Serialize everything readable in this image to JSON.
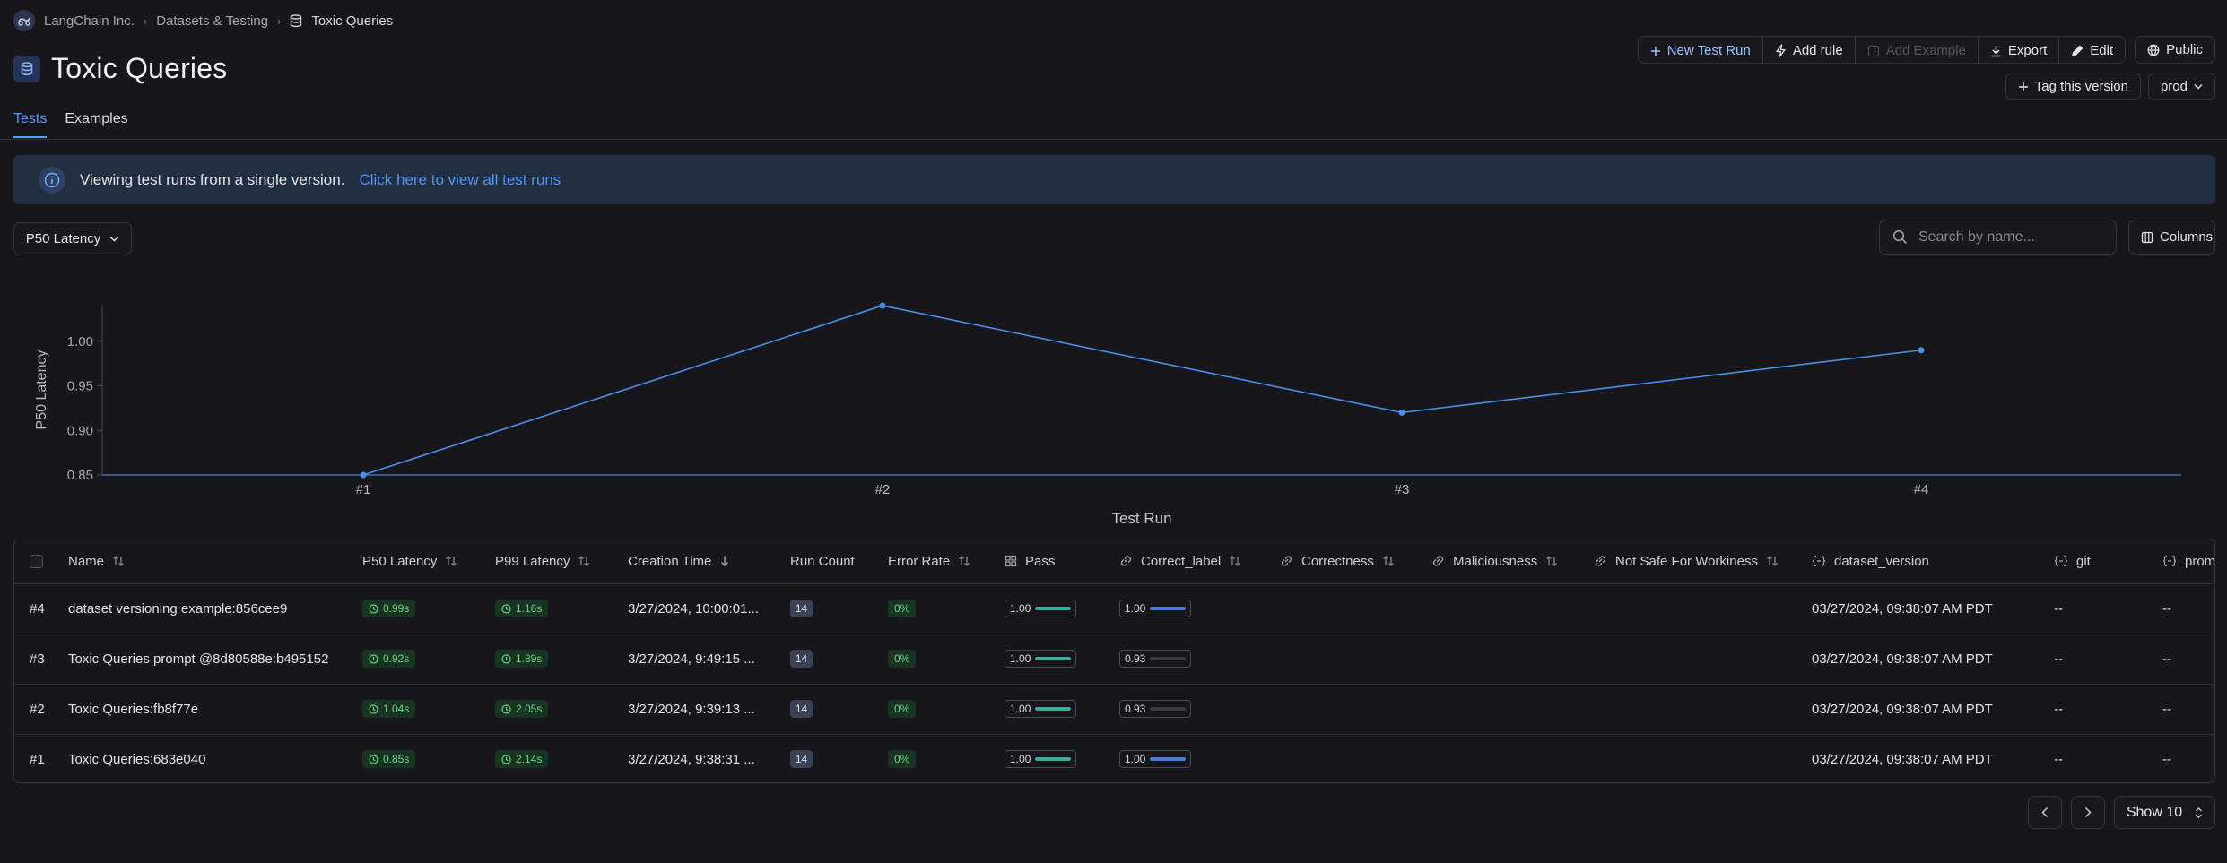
{
  "breadcrumb": {
    "org": "LangChain Inc.",
    "section": "Datasets & Testing",
    "current": "Toxic Queries"
  },
  "title": "Toxic Queries",
  "toolbar": {
    "new_test_run": "New Test Run",
    "add_rule": "Add rule",
    "add_example": "Add Example",
    "export": "Export",
    "edit": "Edit",
    "public": "Public",
    "tag_version": "Tag this version",
    "env": "prod"
  },
  "tabs": [
    "Tests",
    "Examples"
  ],
  "banner": {
    "text": "Viewing test runs from a single version.",
    "link": "Click here to view all test runs"
  },
  "metric_select": "P50 Latency",
  "search": {
    "placeholder": "Search by name..."
  },
  "columns_label": "Columns",
  "chart_data": {
    "type": "line",
    "x": [
      "#1",
      "#2",
      "#3",
      "#4"
    ],
    "series": [
      {
        "values": [
          0.85,
          1.04,
          0.92,
          0.99
        ]
      }
    ],
    "xlabel": "Test Run",
    "ylabel": "P50 Latency",
    "yticks": [
      "0.85",
      "0.90",
      "0.95",
      "1.00"
    ],
    "ylim": [
      0.85,
      1.04
    ],
    "color": "#4a8fe8"
  },
  "table": {
    "headers": {
      "name": "Name",
      "p50": "P50 Latency",
      "p99": "P99 Latency",
      "created": "Creation Time",
      "run_count": "Run Count",
      "error_rate": "Error Rate",
      "pass": "Pass",
      "correct_label": "Correct_label",
      "correctness": "Correctness",
      "maliciousness": "Maliciousness",
      "nsfw": "Not Safe For Workiness",
      "dataset_version": "dataset_version",
      "git": "git",
      "prompt": "prom"
    },
    "rows": [
      {
        "id": "#4",
        "name": "dataset versioning example:856cee9",
        "p50": "0.99s",
        "p99": "1.16s",
        "created": "3/27/2024, 10:00:01...",
        "run_count": "14",
        "error_rate": "0%",
        "pass": "1.00",
        "pass_fill": 1.0,
        "correct_label": "1.00",
        "correct_label_fill": 1.0,
        "dataset_version": "03/27/2024, 09:38:07 AM PDT",
        "git": "--",
        "prompt": "--"
      },
      {
        "id": "#3",
        "name": "Toxic Queries prompt @8d80588e:b495152",
        "p50": "0.92s",
        "p99": "1.89s",
        "created": "3/27/2024, 9:49:15 ...",
        "run_count": "14",
        "error_rate": "0%",
        "pass": "1.00",
        "pass_fill": 1.0,
        "correct_label": "0.93",
        "correct_label_fill": 0.0,
        "dataset_version": "03/27/2024, 09:38:07 AM PDT",
        "git": "--",
        "prompt": "--"
      },
      {
        "id": "#2",
        "name": "Toxic Queries:fb8f77e",
        "p50": "1.04s",
        "p99": "2.05s",
        "created": "3/27/2024, 9:39:13 ...",
        "run_count": "14",
        "error_rate": "0%",
        "pass": "1.00",
        "pass_fill": 1.0,
        "correct_label": "0.93",
        "correct_label_fill": 0.0,
        "dataset_version": "03/27/2024, 09:38:07 AM PDT",
        "git": "--",
        "prompt": "--"
      },
      {
        "id": "#1",
        "name": "Toxic Queries:683e040",
        "p50": "0.85s",
        "p99": "2.14s",
        "created": "3/27/2024, 9:38:31 ...",
        "run_count": "14",
        "error_rate": "0%",
        "pass": "1.00",
        "pass_fill": 1.0,
        "correct_label": "1.00",
        "correct_label_fill": 1.0,
        "dataset_version": "03/27/2024, 09:38:07 AM PDT",
        "git": "--",
        "prompt": "--"
      }
    ]
  },
  "pagination": {
    "show": "Show 10"
  },
  "colors": {
    "accent": "#5b9bf5",
    "pass_bar": "#3aa8a0",
    "label_bar": "#4a7fd0",
    "success": "#6fd38c"
  }
}
